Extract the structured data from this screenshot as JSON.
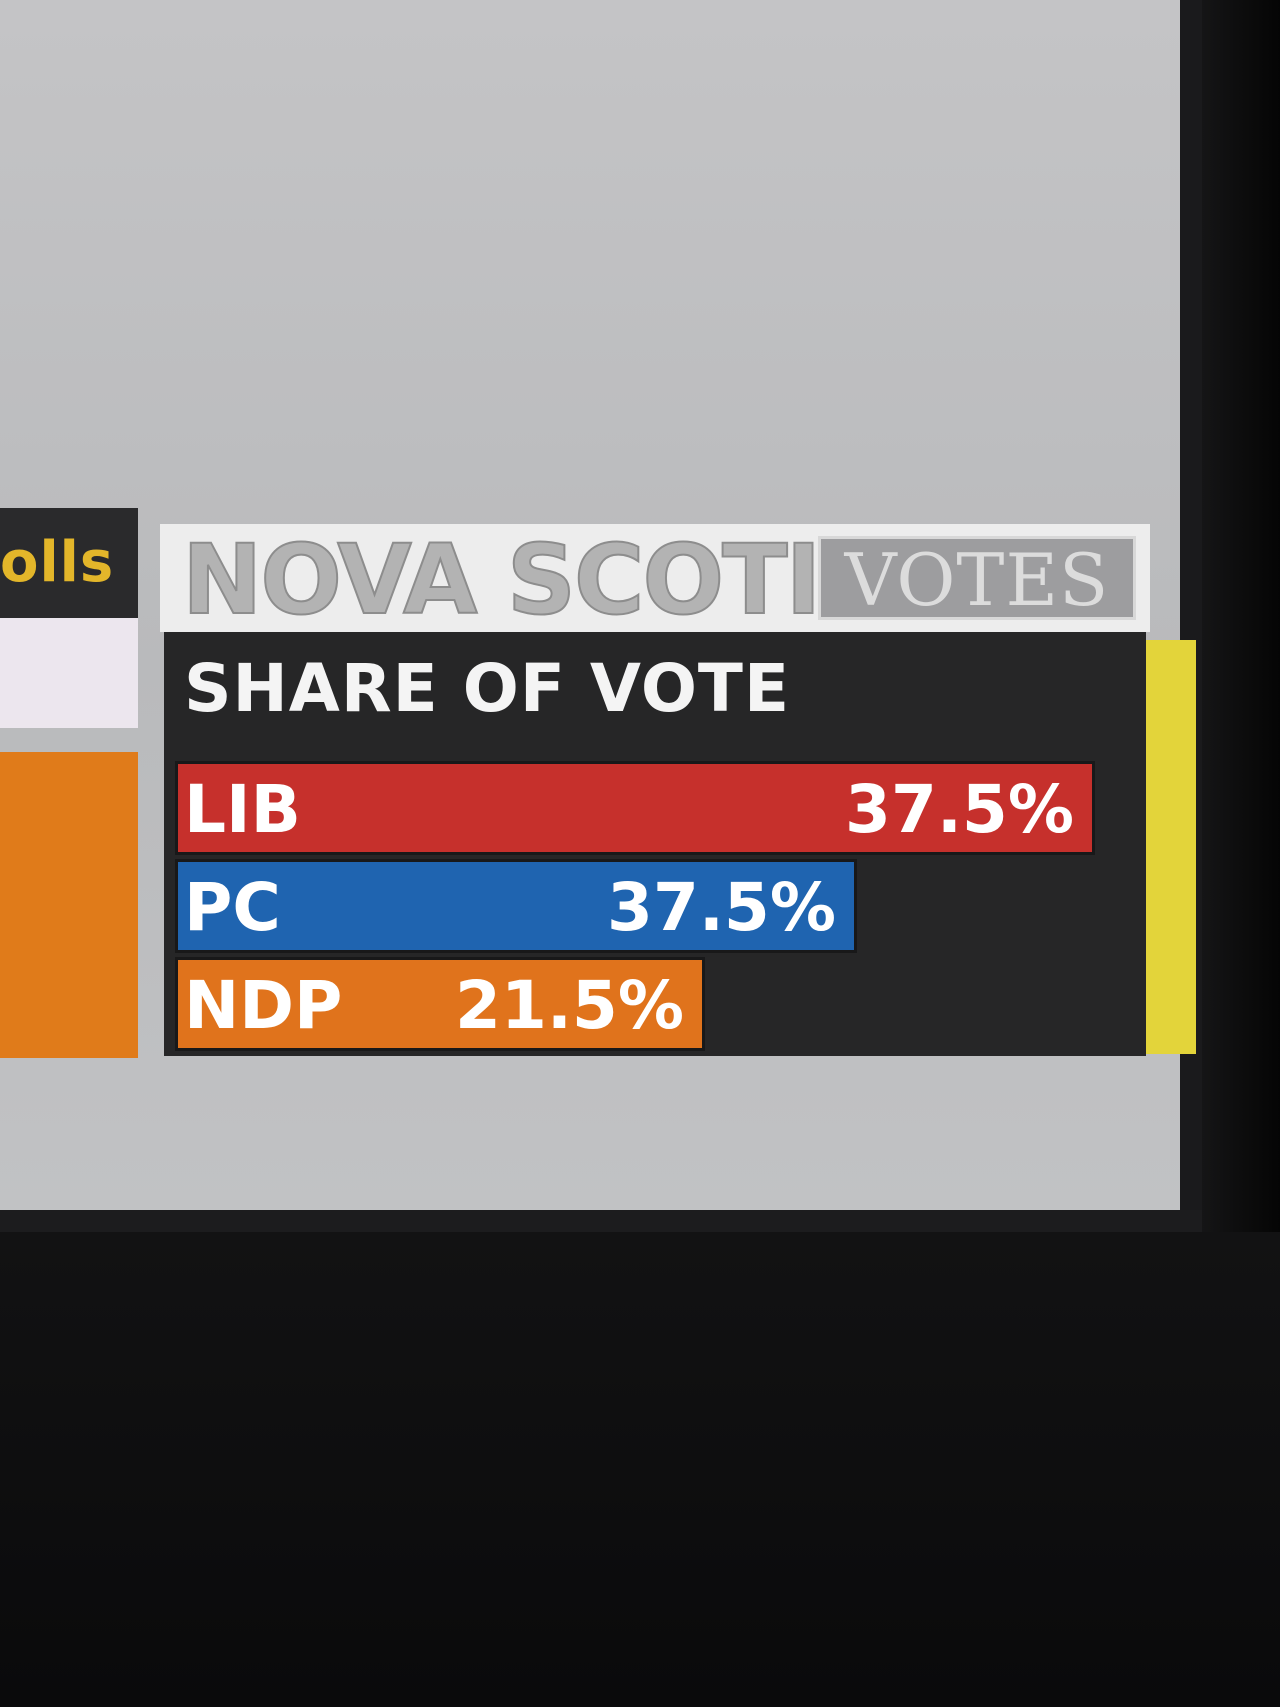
{
  "side_panel": {
    "label": "olls"
  },
  "header": {
    "title": "NOVA SCOTIA",
    "tag": "VOTES"
  },
  "colors": {
    "LIB": "#c6302c",
    "PC": "#1f64b0",
    "NDP": "#e0731c",
    "accent": "#e3d43a"
  },
  "chart_data": {
    "type": "bar",
    "orientation": "horizontal",
    "title": "SHARE OF VOTE",
    "categories": [
      "LIB",
      "PC",
      "NDP"
    ],
    "values": [
      37.5,
      37.5,
      21.5
    ],
    "value_labels": [
      "37.5%",
      "37.5%",
      "21.5%"
    ],
    "unit": "%",
    "grid": false
  }
}
